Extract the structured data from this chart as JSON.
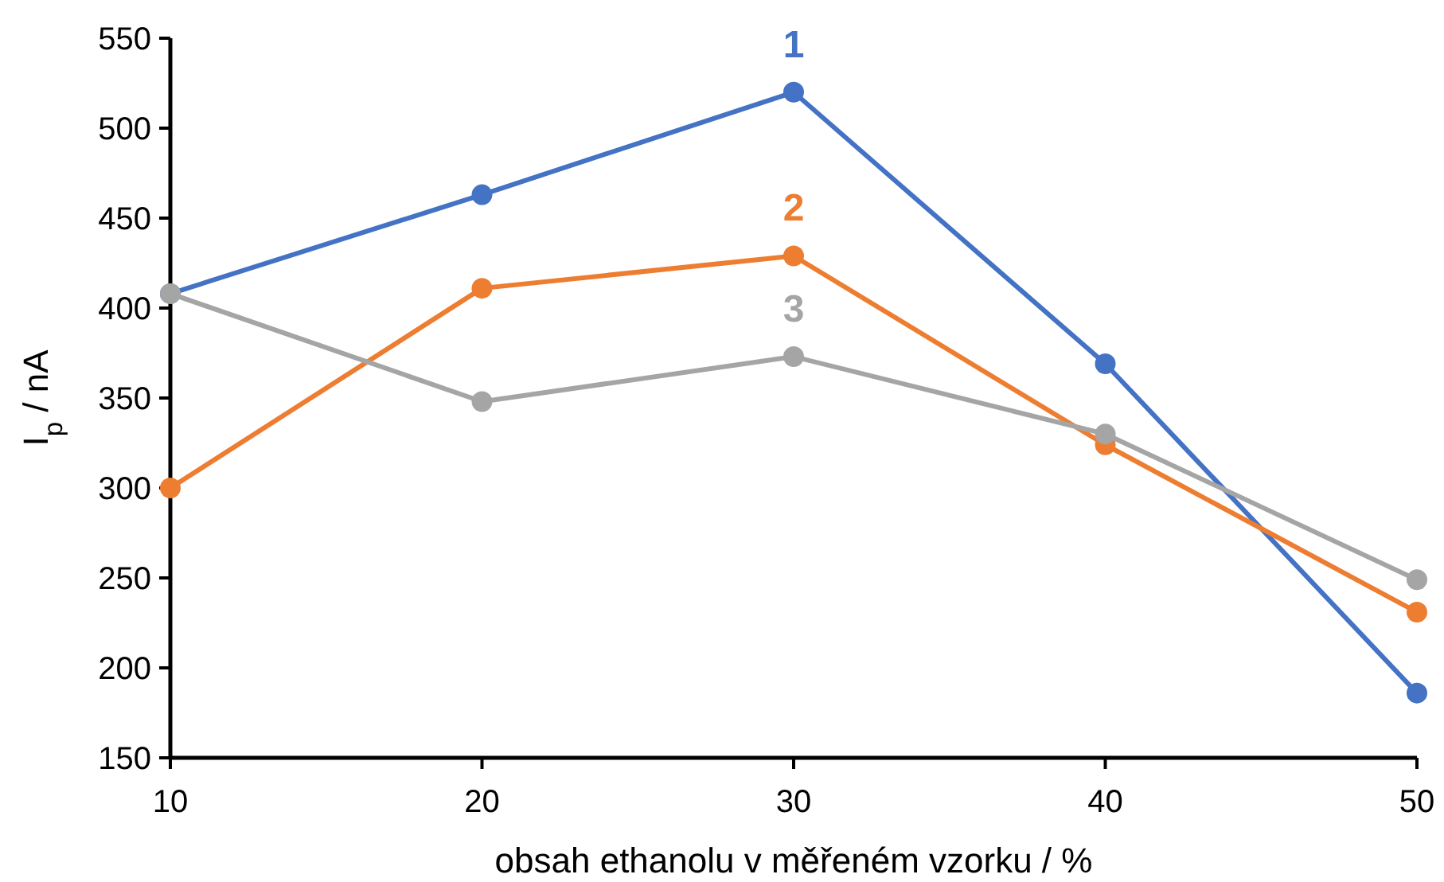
{
  "chart_data": {
    "type": "line",
    "xlabel": "obsah ethanolu v měřeném vzorku / %",
    "ylabel": "I$_{p}$ / nA",
    "x": [
      10,
      20,
      30,
      40,
      50
    ],
    "series": [
      {
        "name": "1",
        "color": "#4472c4",
        "values": [
          408,
          463,
          520,
          369,
          186
        ]
      },
      {
        "name": "2",
        "color": "#ed7d31",
        "values": [
          300,
          411,
          429,
          324,
          231
        ]
      },
      {
        "name": "3",
        "color": "#a5a5a5",
        "values": [
          408,
          348,
          373,
          330,
          249
        ]
      }
    ],
    "xlim": [
      10,
      50
    ],
    "xticks": [
      10,
      20,
      30,
      40,
      50
    ],
    "ylim": [
      150,
      550
    ],
    "yticks": [
      150,
      200,
      250,
      300,
      350,
      400,
      450,
      500,
      550
    ],
    "grid": false,
    "marker": "circle",
    "line_style": "solid"
  }
}
